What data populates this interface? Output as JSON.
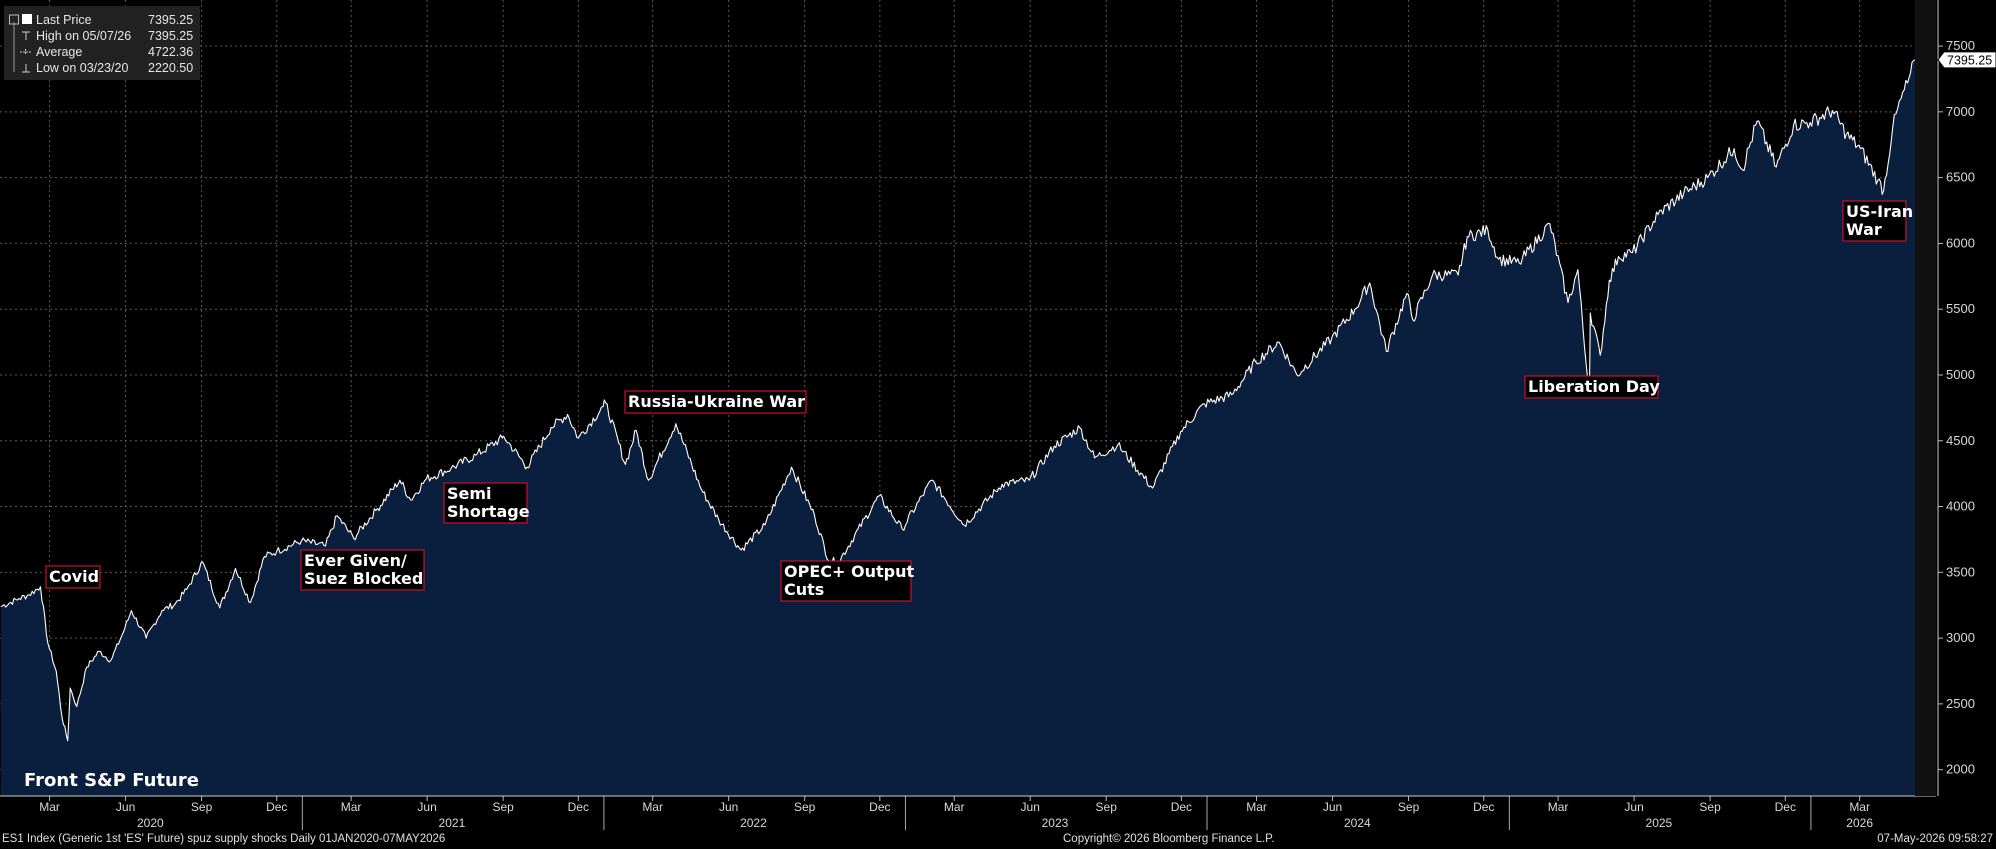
{
  "chart_data": {
    "type": "area",
    "title": "Front S&P Future",
    "ylim": [
      1800,
      7850
    ],
    "yticks": [
      2000,
      2500,
      3000,
      3500,
      4000,
      4500,
      5000,
      5500,
      6000,
      6500,
      7000,
      7500
    ],
    "xlim": [
      "2020-01-01",
      "2026-05-07"
    ],
    "month_ticks": [
      {
        "date": "2020-03-01",
        "label": "Mar"
      },
      {
        "date": "2020-06-01",
        "label": "Jun"
      },
      {
        "date": "2020-09-01",
        "label": "Sep"
      },
      {
        "date": "2020-12-01",
        "label": "Dec"
      },
      {
        "date": "2021-03-01",
        "label": "Mar"
      },
      {
        "date": "2021-06-01",
        "label": "Jun"
      },
      {
        "date": "2021-09-01",
        "label": "Sep"
      },
      {
        "date": "2021-12-01",
        "label": "Dec"
      },
      {
        "date": "2022-03-01",
        "label": "Mar"
      },
      {
        "date": "2022-06-01",
        "label": "Jun"
      },
      {
        "date": "2022-09-01",
        "label": "Sep"
      },
      {
        "date": "2022-12-01",
        "label": "Dec"
      },
      {
        "date": "2023-03-01",
        "label": "Mar"
      },
      {
        "date": "2023-06-01",
        "label": "Jun"
      },
      {
        "date": "2023-09-01",
        "label": "Sep"
      },
      {
        "date": "2023-12-01",
        "label": "Dec"
      },
      {
        "date": "2024-03-01",
        "label": "Mar"
      },
      {
        "date": "2024-06-01",
        "label": "Jun"
      },
      {
        "date": "2024-09-01",
        "label": "Sep"
      },
      {
        "date": "2024-12-01",
        "label": "Dec"
      },
      {
        "date": "2025-03-01",
        "label": "Mar"
      },
      {
        "date": "2025-06-01",
        "label": "Jun"
      },
      {
        "date": "2025-09-01",
        "label": "Sep"
      },
      {
        "date": "2025-12-01",
        "label": "Dec"
      },
      {
        "date": "2026-03-01",
        "label": "Mar"
      }
    ],
    "year_labels": [
      {
        "date": "2020-07-01",
        "label": "2020"
      },
      {
        "date": "2021-07-01",
        "label": "2021"
      },
      {
        "date": "2022-07-01",
        "label": "2022"
      },
      {
        "date": "2023-07-01",
        "label": "2023"
      },
      {
        "date": "2024-07-01",
        "label": "2024"
      },
      {
        "date": "2025-07-01",
        "label": "2025"
      },
      {
        "date": "2026-03-01",
        "label": "2026"
      }
    ],
    "year_boundaries": [
      "2021-01-01",
      "2022-01-01",
      "2023-01-01",
      "2024-01-01",
      "2025-01-01",
      "2026-01-01"
    ],
    "series": [
      {
        "name": "Last Price",
        "points": [
          [
            "2020-01-02",
            3240
          ],
          [
            "2020-01-24",
            3300
          ],
          [
            "2020-02-05",
            3330
          ],
          [
            "2020-02-19",
            3390
          ],
          [
            "2020-02-28",
            2960
          ],
          [
            "2020-03-09",
            2750
          ],
          [
            "2020-03-16",
            2400
          ],
          [
            "2020-03-23",
            2220.5
          ],
          [
            "2020-03-26",
            2620
          ],
          [
            "2020-04-03",
            2480
          ],
          [
            "2020-04-15",
            2780
          ],
          [
            "2020-04-30",
            2900
          ],
          [
            "2020-05-14",
            2830
          ],
          [
            "2020-05-29",
            3040
          ],
          [
            "2020-06-08",
            3210
          ],
          [
            "2020-06-26",
            3000
          ],
          [
            "2020-07-15",
            3210
          ],
          [
            "2020-07-31",
            3260
          ],
          [
            "2020-08-14",
            3370
          ],
          [
            "2020-09-02",
            3580
          ],
          [
            "2020-09-23",
            3230
          ],
          [
            "2020-10-12",
            3530
          ],
          [
            "2020-10-30",
            3270
          ],
          [
            "2020-11-16",
            3620
          ],
          [
            "2020-12-01",
            3660
          ],
          [
            "2020-12-31",
            3740
          ],
          [
            "2021-01-29",
            3700
          ],
          [
            "2021-02-12",
            3930
          ],
          [
            "2021-03-04",
            3760
          ],
          [
            "2021-03-31",
            3970
          ],
          [
            "2021-04-29",
            4200
          ],
          [
            "2021-05-12",
            4050
          ],
          [
            "2021-05-31",
            4210
          ],
          [
            "2021-06-30",
            4290
          ],
          [
            "2021-07-30",
            4390
          ],
          [
            "2021-08-31",
            4520
          ],
          [
            "2021-09-02",
            4530
          ],
          [
            "2021-09-30",
            4300
          ],
          [
            "2021-10-29",
            4600
          ],
          [
            "2021-11-18",
            4700
          ],
          [
            "2021-12-01",
            4520
          ],
          [
            "2021-12-31",
            4760
          ],
          [
            "2022-01-03",
            4790
          ],
          [
            "2022-01-27",
            4320
          ],
          [
            "2022-02-09",
            4580
          ],
          [
            "2022-02-24",
            4200
          ],
          [
            "2022-03-29",
            4630
          ],
          [
            "2022-04-29",
            4130
          ],
          [
            "2022-05-20",
            3900
          ],
          [
            "2022-06-16",
            3670
          ],
          [
            "2022-07-15",
            3860
          ],
          [
            "2022-08-16",
            4300
          ],
          [
            "2022-09-13",
            3930
          ],
          [
            "2022-09-30",
            3590
          ],
          [
            "2022-10-12",
            3580
          ],
          [
            "2022-11-30",
            4080
          ],
          [
            "2022-12-28",
            3830
          ],
          [
            "2023-02-02",
            4200
          ],
          [
            "2023-03-13",
            3860
          ],
          [
            "2023-04-28",
            4170
          ],
          [
            "2023-05-31",
            4200
          ],
          [
            "2023-06-30",
            4460
          ],
          [
            "2023-07-31",
            4600
          ],
          [
            "2023-08-18",
            4370
          ],
          [
            "2023-09-15",
            4470
          ],
          [
            "2023-10-27",
            4140
          ],
          [
            "2023-11-30",
            4570
          ],
          [
            "2023-12-29",
            4780
          ],
          [
            "2024-01-31",
            4850
          ],
          [
            "2024-02-29",
            5100
          ],
          [
            "2024-03-28",
            5250
          ],
          [
            "2024-04-19",
            5000
          ],
          [
            "2024-05-31",
            5280
          ],
          [
            "2024-06-28",
            5500
          ],
          [
            "2024-07-16",
            5700
          ],
          [
            "2024-08-05",
            5180
          ],
          [
            "2024-08-30",
            5620
          ],
          [
            "2024-09-06",
            5420
          ],
          [
            "2024-09-30",
            5760
          ],
          [
            "2024-10-31",
            5760
          ],
          [
            "2024-11-11",
            6050
          ],
          [
            "2024-12-06",
            6100
          ],
          [
            "2024-12-19",
            5880
          ],
          [
            "2025-01-13",
            5850
          ],
          [
            "2025-02-19",
            6150
          ],
          [
            "2025-03-13",
            5550
          ],
          [
            "2025-03-25",
            5800
          ],
          [
            "2025-04-04",
            5080
          ],
          [
            "2025-04-08",
            4900
          ],
          [
            "2025-04-09",
            5470
          ],
          [
            "2025-04-21",
            5150
          ],
          [
            "2025-05-02",
            5720
          ],
          [
            "2025-05-13",
            5900
          ],
          [
            "2025-05-30",
            5930
          ],
          [
            "2025-06-30",
            6220
          ],
          [
            "2025-07-31",
            6380
          ],
          [
            "2025-08-29",
            6500
          ],
          [
            "2025-09-30",
            6720
          ],
          [
            "2025-10-10",
            6560
          ],
          [
            "2025-10-28",
            6930
          ],
          [
            "2025-11-20",
            6580
          ],
          [
            "2025-12-11",
            6900
          ],
          [
            "2025-12-31",
            6920
          ],
          [
            "2026-01-27",
            7010
          ],
          [
            "2026-02-13",
            6830
          ],
          [
            "2026-03-02",
            6720
          ],
          [
            "2026-03-23",
            6480
          ],
          [
            "2026-03-30",
            6400
          ],
          [
            "2026-04-10",
            6880
          ],
          [
            "2026-04-20",
            7100
          ],
          [
            "2026-04-28",
            7220
          ],
          [
            "2026-05-07",
            7395.25
          ]
        ]
      }
    ],
    "annotations": [
      {
        "lines": [
          "Covid"
        ]
      },
      {
        "lines": [
          "Ever Given/",
          "Suez Blocked"
        ]
      },
      {
        "lines": [
          "Semi",
          "Shortage"
        ]
      },
      {
        "lines": [
          "Russia-Ukraine War"
        ]
      },
      {
        "lines": [
          "OPEC+ Output",
          "Cuts"
        ]
      },
      {
        "lines": [
          "Liberation Day"
        ]
      },
      {
        "lines": [
          "US-Iran",
          "War"
        ]
      }
    ],
    "last_value_label": "7395.25",
    "legend": [
      {
        "symbol": "square",
        "label": "Last Price",
        "value": "7395.25"
      },
      {
        "symbol": "high",
        "label": "High on 05/07/26",
        "value": "7395.25"
      },
      {
        "symbol": "avg",
        "label": "Average",
        "value": "4722.36"
      },
      {
        "symbol": "low",
        "label": "Low on 03/23/20",
        "value": "2220.50"
      }
    ],
    "colors": {
      "background": "#000000",
      "area_fill": "#0a1f3d",
      "line": "#ffffff",
      "annotation_border": "#c8102e",
      "grid": "#5a5a5a"
    },
    "grid": true
  },
  "footer": {
    "left": "ES1 Index (Generic 1st 'ES' Future) spuz supply shocks Daily 01JAN2020-07MAY2026",
    "center": "Copyright© 2026 Bloomberg Finance L.P.",
    "right": "07-May-2026 09:58:27"
  }
}
